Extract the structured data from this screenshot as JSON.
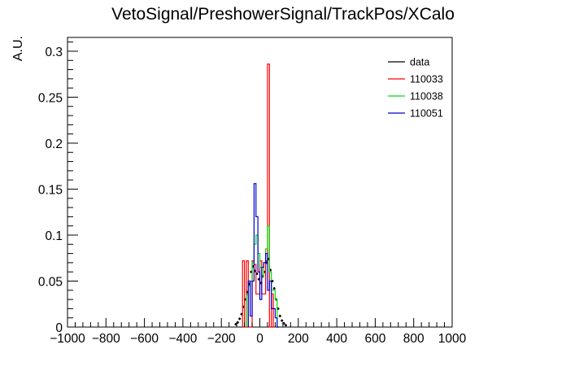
{
  "chart_data": {
    "type": "histogram",
    "title": "VetoSignal/PreshowerSignal/TrackPos/XCalo",
    "xlabel": "",
    "ylabel": "A.U.",
    "xlim": [
      -1000,
      1000
    ],
    "ylim": [
      0,
      0.315
    ],
    "bin_width": 10,
    "grid": false,
    "legend_position": "top-right",
    "x_ticks": [
      {
        "value": -1000,
        "label": "−1000"
      },
      {
        "value": -800,
        "label": "−800"
      },
      {
        "value": -600,
        "label": "−600"
      },
      {
        "value": -400,
        "label": "−400"
      },
      {
        "value": -200,
        "label": "−200"
      },
      {
        "value": 0,
        "label": "0"
      },
      {
        "value": 200,
        "label": "200"
      },
      {
        "value": 400,
        "label": "400"
      },
      {
        "value": 600,
        "label": "600"
      },
      {
        "value": 800,
        "label": "800"
      },
      {
        "value": 1000,
        "label": "1000"
      }
    ],
    "y_ticks": [
      {
        "value": 0,
        "label": "0"
      },
      {
        "value": 0.05,
        "label": "0.05"
      },
      {
        "value": 0.1,
        "label": "0.1"
      },
      {
        "value": 0.15,
        "label": "0.15"
      },
      {
        "value": 0.2,
        "label": "0.2"
      },
      {
        "value": 0.25,
        "label": "0.25"
      },
      {
        "value": 0.3,
        "label": "0.3"
      }
    ],
    "series": [
      {
        "name": "data",
        "color": "#000000",
        "style": "points",
        "points": [
          {
            "x": -125,
            "y": 0.003
          },
          {
            "x": -115,
            "y": 0.005
          },
          {
            "x": -105,
            "y": 0.009
          },
          {
            "x": -95,
            "y": 0.014
          },
          {
            "x": -85,
            "y": 0.022
          },
          {
            "x": -75,
            "y": 0.03
          },
          {
            "x": -65,
            "y": 0.038
          },
          {
            "x": -55,
            "y": 0.047
          },
          {
            "x": -45,
            "y": 0.06
          },
          {
            "x": -35,
            "y": 0.066
          },
          {
            "x": -25,
            "y": 0.061
          },
          {
            "x": -15,
            "y": 0.058
          },
          {
            "x": -5,
            "y": 0.052
          },
          {
            "x": 5,
            "y": 0.048
          },
          {
            "x": 15,
            "y": 0.055
          },
          {
            "x": 25,
            "y": 0.06
          },
          {
            "x": 35,
            "y": 0.07
          },
          {
            "x": 45,
            "y": 0.074
          },
          {
            "x": 55,
            "y": 0.062
          },
          {
            "x": 65,
            "y": 0.05
          },
          {
            "x": 75,
            "y": 0.042
          },
          {
            "x": 85,
            "y": 0.03
          },
          {
            "x": 95,
            "y": 0.02
          },
          {
            "x": 105,
            "y": 0.012
          },
          {
            "x": 115,
            "y": 0.007
          },
          {
            "x": 125,
            "y": 0.004
          },
          {
            "x": 135,
            "y": 0.002
          }
        ]
      },
      {
        "name": "110033",
        "color": "#ff0000",
        "style": "step",
        "bins": [
          {
            "x0": -90,
            "y": 0.072
          },
          {
            "x0": -80,
            "y": 0.0
          },
          {
            "x0": -70,
            "y": 0.072
          },
          {
            "x0": -60,
            "y": 0.0
          },
          {
            "x0": -50,
            "y": 0.0
          },
          {
            "x0": -40,
            "y": 0.072
          },
          {
            "x0": -30,
            "y": 0.068
          },
          {
            "x0": -20,
            "y": 0.036
          },
          {
            "x0": -10,
            "y": 0.036
          },
          {
            "x0": 0,
            "y": 0.072
          },
          {
            "x0": 10,
            "y": 0.036
          },
          {
            "x0": 20,
            "y": 0.036
          },
          {
            "x0": 30,
            "y": 0.072
          },
          {
            "x0": 40,
            "y": 0.286
          },
          {
            "x0": 50,
            "y": 0.0
          },
          {
            "x0": 60,
            "y": 0.036
          },
          {
            "x0": 70,
            "y": 0.0
          }
        ]
      },
      {
        "name": "110038",
        "color": "#00dd00",
        "style": "step",
        "bins": [
          {
            "x0": -70,
            "y": 0.035
          },
          {
            "x0": -60,
            "y": 0.045
          },
          {
            "x0": -50,
            "y": 0.05
          },
          {
            "x0": -40,
            "y": 0.07
          },
          {
            "x0": -30,
            "y": 0.09
          },
          {
            "x0": -20,
            "y": 0.1
          },
          {
            "x0": -10,
            "y": 0.08
          },
          {
            "x0": 0,
            "y": 0.065
          },
          {
            "x0": 10,
            "y": 0.055
          },
          {
            "x0": 20,
            "y": 0.07
          },
          {
            "x0": 30,
            "y": 0.085
          },
          {
            "x0": 40,
            "y": 0.11
          },
          {
            "x0": 50,
            "y": 0.06
          },
          {
            "x0": 60,
            "y": 0.04
          },
          {
            "x0": 70,
            "y": 0.04
          },
          {
            "x0": 80,
            "y": 0.03
          },
          {
            "x0": 90,
            "y": 0.0
          }
        ]
      },
      {
        "name": "110051",
        "color": "#0000cc",
        "style": "step",
        "bins": [
          {
            "x0": -60,
            "y": 0.05
          },
          {
            "x0": -50,
            "y": 0.012
          },
          {
            "x0": -40,
            "y": 0.05
          },
          {
            "x0": -30,
            "y": 0.156
          },
          {
            "x0": -20,
            "y": 0.12
          },
          {
            "x0": -10,
            "y": 0.06
          },
          {
            "x0": 0,
            "y": 0.03
          },
          {
            "x0": 10,
            "y": 0.065
          },
          {
            "x0": 20,
            "y": 0.07
          },
          {
            "x0": 30,
            "y": 0.08
          },
          {
            "x0": 40,
            "y": 0.04
          },
          {
            "x0": 50,
            "y": 0.05
          },
          {
            "x0": 60,
            "y": 0.02
          },
          {
            "x0": 70,
            "y": 0.02
          },
          {
            "x0": 80,
            "y": 0.01
          },
          {
            "x0": 90,
            "y": 0.0
          }
        ]
      }
    ]
  }
}
